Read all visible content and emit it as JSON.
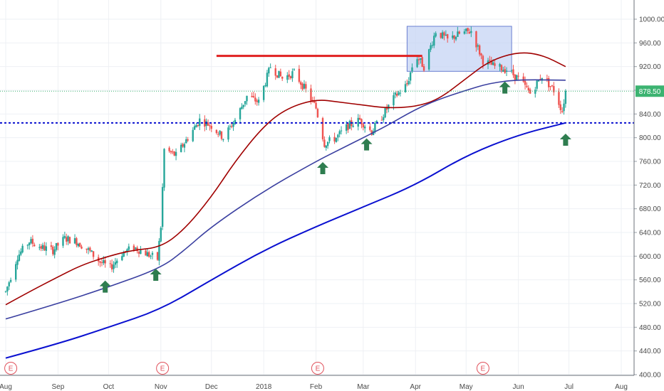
{
  "chart_data": {
    "type": "candlestick",
    "title": "",
    "xlabel": "",
    "ylabel": "",
    "ylim": [
      400,
      1020
    ],
    "y_ticks": [
      "400.00",
      "440.00",
      "480.00",
      "520.00",
      "560.00",
      "600.00",
      "640.00",
      "680.00",
      "720.00",
      "760.00",
      "800.00",
      "840.00",
      "880.00",
      "920.00",
      "960.00",
      "1000.00"
    ],
    "x_ticks": [
      {
        "label": "Aug",
        "x": "2017-08-01"
      },
      {
        "label": "Sep",
        "x": "2017-09-01"
      },
      {
        "label": "Oct",
        "x": "2017-10-01"
      },
      {
        "label": "Nov",
        "x": "2017-11-01"
      },
      {
        "label": "Dec",
        "x": "2017-12-01"
      },
      {
        "label": "2018",
        "x": "2018-01-01"
      },
      {
        "label": "Feb",
        "x": "2018-02-01"
      },
      {
        "label": "Mar",
        "x": "2018-03-01"
      },
      {
        "label": "Apr",
        "x": "2018-04-01"
      },
      {
        "label": "May",
        "x": "2018-05-01"
      },
      {
        "label": "Jun",
        "x": "2018-06-01"
      },
      {
        "label": "Jul",
        "x": "2018-07-01"
      },
      {
        "label": "Aug",
        "x": "2018-08-01"
      }
    ],
    "last_price": {
      "label": "878.50",
      "value": 878.5
    },
    "price_path": [
      [
        "2017-08-01",
        540
      ],
      [
        "2017-08-08",
        600
      ],
      [
        "2017-08-15",
        625
      ],
      [
        "2017-08-22",
        615
      ],
      [
        "2017-08-29",
        610
      ],
      [
        "2017-09-05",
        630
      ],
      [
        "2017-09-12",
        625
      ],
      [
        "2017-09-19",
        610
      ],
      [
        "2017-09-26",
        590
      ],
      [
        "2017-10-02",
        580
      ],
      [
        "2017-10-09",
        605
      ],
      [
        "2017-10-16",
        615
      ],
      [
        "2017-10-23",
        605
      ],
      [
        "2017-10-30",
        595
      ],
      [
        "2017-11-01",
        650
      ],
      [
        "2017-11-03",
        780
      ],
      [
        "2017-11-10",
        770
      ],
      [
        "2017-11-17",
        800
      ],
      [
        "2017-11-24",
        830
      ],
      [
        "2017-12-01",
        820
      ],
      [
        "2017-12-08",
        800
      ],
      [
        "2017-12-15",
        830
      ],
      [
        "2017-12-22",
        870
      ],
      [
        "2017-12-29",
        860
      ],
      [
        "2018-01-05",
        920
      ],
      [
        "2018-01-12",
        900
      ],
      [
        "2018-01-19",
        910
      ],
      [
        "2018-01-26",
        880
      ],
      [
        "2018-02-01",
        850
      ],
      [
        "2018-02-06",
        790
      ],
      [
        "2018-02-13",
        800
      ],
      [
        "2018-02-20",
        820
      ],
      [
        "2018-02-27",
        830
      ],
      [
        "2018-03-06",
        810
      ],
      [
        "2018-03-13",
        840
      ],
      [
        "2018-03-20",
        870
      ],
      [
        "2018-03-27",
        890
      ],
      [
        "2018-04-01",
        940
      ],
      [
        "2018-04-06",
        920
      ],
      [
        "2018-04-13",
        980
      ],
      [
        "2018-04-20",
        965
      ],
      [
        "2018-04-27",
        975
      ],
      [
        "2018-05-04",
        980
      ],
      [
        "2018-05-11",
        930
      ],
      [
        "2018-05-18",
        920
      ],
      [
        "2018-05-25",
        915
      ],
      [
        "2018-06-01",
        900
      ],
      [
        "2018-06-08",
        875
      ],
      [
        "2018-06-15",
        905
      ],
      [
        "2018-06-22",
        880
      ],
      [
        "2018-06-27",
        845
      ],
      [
        "2018-06-29",
        878.5
      ]
    ],
    "series": [
      {
        "name": "",
        "color": "#a00000",
        "values": [
          [
            "2017-08-01",
            518
          ],
          [
            "2017-08-15",
            540
          ],
          [
            "2017-09-01",
            565
          ],
          [
            "2017-09-15",
            585
          ],
          [
            "2017-10-01",
            600
          ],
          [
            "2017-10-15",
            610
          ],
          [
            "2017-11-01",
            615
          ],
          [
            "2017-11-15",
            645
          ],
          [
            "2017-12-01",
            700
          ],
          [
            "2017-12-15",
            760
          ],
          [
            "2018-01-01",
            820
          ],
          [
            "2018-01-15",
            850
          ],
          [
            "2018-02-01",
            865
          ],
          [
            "2018-02-15",
            860
          ],
          [
            "2018-03-01",
            855
          ],
          [
            "2018-03-15",
            850
          ],
          [
            "2018-04-01",
            852
          ],
          [
            "2018-04-15",
            865
          ],
          [
            "2018-05-01",
            900
          ],
          [
            "2018-05-15",
            930
          ],
          [
            "2018-06-01",
            945
          ],
          [
            "2018-06-15",
            940
          ],
          [
            "2018-06-29",
            920
          ]
        ]
      },
      {
        "name": "",
        "color": "#3a3fa0",
        "values": [
          [
            "2017-08-01",
            494
          ],
          [
            "2017-09-01",
            520
          ],
          [
            "2017-10-01",
            548
          ],
          [
            "2017-11-01",
            580
          ],
          [
            "2017-11-15",
            610
          ],
          [
            "2017-12-01",
            650
          ],
          [
            "2018-01-01",
            710
          ],
          [
            "2018-02-01",
            760
          ],
          [
            "2018-02-15",
            780
          ],
          [
            "2018-03-01",
            800
          ],
          [
            "2018-03-15",
            820
          ],
          [
            "2018-04-01",
            848
          ],
          [
            "2018-04-15",
            865
          ],
          [
            "2018-05-01",
            880
          ],
          [
            "2018-05-15",
            892
          ],
          [
            "2018-06-01",
            898
          ],
          [
            "2018-06-29",
            897
          ]
        ]
      },
      {
        "name": "",
        "color": "#0a10d0",
        "values": [
          [
            "2017-08-01",
            428
          ],
          [
            "2017-09-01",
            452
          ],
          [
            "2017-10-01",
            480
          ],
          [
            "2017-11-01",
            510
          ],
          [
            "2017-12-01",
            560
          ],
          [
            "2018-01-01",
            610
          ],
          [
            "2018-02-01",
            650
          ],
          [
            "2018-03-01",
            683
          ],
          [
            "2018-04-01",
            720
          ],
          [
            "2018-05-01",
            770
          ],
          [
            "2018-06-01",
            805
          ],
          [
            "2018-06-29",
            825
          ]
        ]
      }
    ],
    "annotations": {
      "resistance_line": {
        "color": "#e02020",
        "x0": "2017-12-04",
        "x1": "2018-04-05",
        "y": 938
      },
      "support_line": {
        "color": "#0a10d0",
        "y": 825
      },
      "last_price_line": {
        "color": "#3cb371",
        "y": 878.5
      },
      "range_box": {
        "x0": "2018-03-27",
        "x1": "2018-05-28",
        "y0": 912,
        "y1": 988,
        "fill": "#c6d4f4",
        "stroke": "#6a7fd0"
      },
      "up_arrows": [
        {
          "x": "2017-09-29",
          "y": 548
        },
        {
          "x": "2017-10-29",
          "y": 568
        },
        {
          "x": "2018-02-05",
          "y": 748
        },
        {
          "x": "2018-03-03",
          "y": 788
        },
        {
          "x": "2018-05-24",
          "y": 884
        },
        {
          "x": "2018-06-29",
          "y": 796
        }
      ],
      "earnings": [
        {
          "x": "2017-08-04",
          "label": "E"
        },
        {
          "x": "2017-11-02",
          "label": "E"
        },
        {
          "x": "2018-02-02",
          "label": "E"
        },
        {
          "x": "2018-05-11",
          "label": "E"
        }
      ]
    },
    "grid": true,
    "colors": {
      "up": "#26a69a",
      "down": "#ef5350"
    }
  }
}
